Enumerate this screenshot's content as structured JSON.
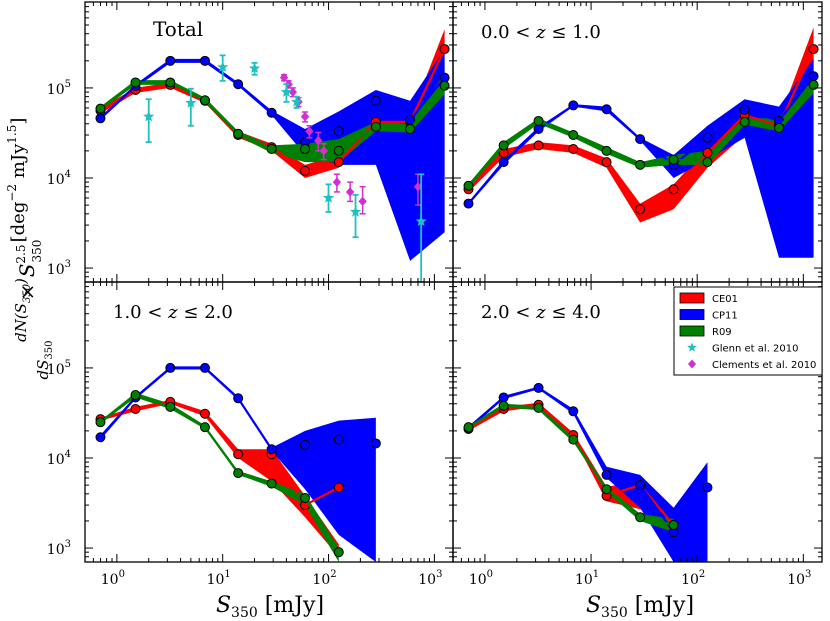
{
  "figure": {
    "ylabel": "dN(S350)/dS350 × S350^2.5 [deg^-2 mJy^1.5]",
    "ylabel_left": "dN(S",
    "ylabel_left_sub": "350",
    "ylabel_left_end": ")",
    "ylabel_den": "dS",
    "ylabel_den_sub": "350",
    "ylabel_times": "× S",
    "ylabel_sub": "350",
    "ylabel_sup": "2.5",
    "ylabel_unit": "[deg",
    "ylabel_unit_sup1": "−2",
    "ylabel_unit_mid": " mJy",
    "ylabel_unit_sup2": "1.5",
    "ylabel_unit_end": "]",
    "xlabel_main": "S",
    "xlabel_sub": "350",
    "xlabel_unit": " [mJy]",
    "xticks": [
      "10",
      "10",
      "10",
      "10"
    ],
    "xticks_exp": [
      "0",
      "1",
      "2",
      "3"
    ],
    "yticks": [
      "10",
      "10",
      "10"
    ],
    "yticks_exp": [
      "3",
      "4",
      "5"
    ]
  },
  "legend": {
    "entries": [
      {
        "name": "CE01",
        "color": "#ff0000",
        "kind": "band"
      },
      {
        "name": "CP11",
        "color": "#0000ff",
        "kind": "band"
      },
      {
        "name": "R09",
        "color": "#008000",
        "kind": "band"
      },
      {
        "name": "Glenn et al. 2010",
        "color": "#20c0c0",
        "kind": "star"
      },
      {
        "name": "Clements et al. 2010",
        "color": "#d030d0",
        "kind": "diamond"
      }
    ]
  },
  "chart_data": {
    "type": "line",
    "xscale": "log",
    "yscale": "log",
    "xlim": [
      0.5,
      1500
    ],
    "ylim": [
      700,
      900000
    ],
    "panels": [
      {
        "title": "Total",
        "series": [
          {
            "name": "CE01",
            "color": "#ff0000",
            "x": [
              0.7,
              1.5,
              3.2,
              6.8,
              14,
              29,
              60,
              125,
              280,
              590,
              1250
            ],
            "y": [
              56000,
              95000,
              108000,
              72000,
              30000,
              22000,
              12000,
              15000,
              42000,
              42000,
              270000
            ],
            "low": [
              52000,
              88000,
              100000,
              68000,
              28000,
              20000,
              10000,
              13000,
              38000,
              38000,
              230000
            ],
            "high": [
              60000,
              100000,
              115000,
              76000,
              33000,
              24000,
              14000,
              18000,
              46000,
              46000,
              450000
            ]
          },
          {
            "name": "CP11",
            "color": "#0000ff",
            "x": [
              0.7,
              1.5,
              3.2,
              6.8,
              14,
              29,
              60,
              125,
              280,
              590,
              1250
            ],
            "y": [
              46000,
              105000,
              200000,
              200000,
              110000,
              53000,
              25000,
              33000,
              72000,
              44000,
              130000
            ],
            "low": [
              44000,
              100000,
              190000,
              190000,
              105000,
              50000,
              18000,
              14000,
              14000,
              1200,
              2500
            ],
            "high": [
              48000,
              110000,
              210000,
              210000,
              115000,
              56000,
              35000,
              55000,
              95000,
              72000,
              270000
            ]
          },
          {
            "name": "R09",
            "color": "#008000",
            "x": [
              0.7,
              1.5,
              3.2,
              6.8,
              14,
              29,
              60,
              125,
              280,
              590,
              1250
            ],
            "y": [
              59000,
              115000,
              115000,
              73000,
              31000,
              21000,
              21000,
              20000,
              37000,
              35000,
              106000
            ],
            "low": [
              56000,
              108000,
              108000,
              68000,
              29000,
              19000,
              15000,
              15000,
              33000,
              32000,
              85000
            ],
            "high": [
              62000,
              122000,
              122000,
              78000,
              33000,
              23000,
              24000,
              27000,
              42000,
              40000,
              145000
            ]
          }
        ],
        "glenn": {
          "x": [
            2.0,
            5.0,
            10.0,
            20.0,
            40.0,
            50.0,
            100.0,
            180.0,
            750.0
          ],
          "y": [
            48000,
            68000,
            170000,
            165000,
            90000,
            70000,
            6000,
            4200,
            3300
          ],
          "err": [
            [
              25000,
              75000
            ],
            [
              38000,
              98000
            ],
            [
              120000,
              230000
            ],
            [
              140000,
              190000
            ],
            [
              70000,
              110000
            ],
            [
              60000,
              80000
            ],
            [
              4200,
              8500
            ],
            [
              2200,
              6500
            ],
            [
              700,
              11000
            ]
          ]
        },
        "clements": {
          "x": [
            38,
            42,
            46,
            52,
            60,
            66,
            80,
            90,
            120,
            160,
            210,
            700
          ],
          "y": [
            130000,
            110000,
            90000,
            70000,
            48000,
            33000,
            26000,
            20000,
            9000,
            7000,
            5500,
            8000
          ],
          "err": [
            [
              120000,
              140000
            ],
            [
              100000,
              120000
            ],
            [
              80000,
              100000
            ],
            [
              62000,
              78000
            ],
            [
              42000,
              54000
            ],
            [
              28000,
              38000
            ],
            [
              20000,
              32000
            ],
            [
              16000,
              24000
            ],
            [
              7000,
              11000
            ],
            [
              5500,
              9000
            ],
            [
              4000,
              8000
            ],
            [
              5000,
              11000
            ]
          ]
        }
      },
      {
        "title": "0.0 < z ≤ 1.0",
        "title_parts": [
          "0.0",
          " < ",
          "z",
          " ≤ ",
          "1.0"
        ],
        "series": [
          {
            "name": "CE01",
            "color": "#ff0000",
            "x": [
              0.7,
              1.5,
              3.2,
              6.8,
              14,
              29,
              60,
              125,
              280,
              590,
              1250
            ],
            "y": [
              7500,
              19000,
              23000,
              21000,
              15000,
              4500,
              7500,
              19000,
              50000,
              38000,
              270000
            ],
            "low": [
              7000,
              17000,
              21000,
              19000,
              13000,
              3200,
              4500,
              13000,
              30000,
              33000,
              160000
            ],
            "high": [
              8000,
              21000,
              25000,
              23000,
              16500,
              5200,
              8500,
              22000,
              55000,
              44000,
              470000
            ]
          },
          {
            "name": "CP11",
            "color": "#0000ff",
            "x": [
              0.7,
              1.5,
              3.2,
              6.8,
              14,
              29,
              60,
              125,
              280,
              590,
              1250
            ],
            "y": [
              5200,
              15000,
              35000,
              64000,
              58000,
              27000,
              14000,
              28000,
              57000,
              43000,
              135000
            ],
            "low": [
              5000,
              14000,
              33000,
              62000,
              55000,
              26000,
              10000,
              16000,
              28000,
              1300,
              1300
            ],
            "high": [
              5400,
              16000,
              37000,
              66000,
              62000,
              28000,
              18000,
              38000,
              75000,
              62000,
              210000
            ]
          },
          {
            "name": "R09",
            "color": "#008000",
            "x": [
              0.7,
              1.5,
              3.2,
              6.8,
              14,
              29,
              60,
              125,
              280,
              590,
              1250
            ],
            "y": [
              8200,
              23000,
              43000,
              30000,
              20000,
              14000,
              16000,
              15000,
              42000,
              36000,
              108000
            ],
            "low": [
              7800,
              21000,
              40000,
              28000,
              18500,
              13000,
              14000,
              14000,
              39000,
              33000,
              88000
            ],
            "high": [
              8600,
              25000,
              46000,
              32000,
              22000,
              15000,
              18000,
              20000,
              46000,
              46000,
              140000
            ]
          }
        ]
      },
      {
        "title": "1.0 < z ≤ 2.0",
        "title_parts": [
          "1.0",
          " < ",
          "z",
          " ≤ ",
          "2.0"
        ],
        "series": [
          {
            "name": "CE01",
            "color": "#ff0000",
            "x": [
              0.7,
              1.5,
              3.2,
              6.8,
              14,
              29,
              60,
              125
            ],
            "y": [
              27000,
              35000,
              42000,
              31000,
              11000,
              11000,
              3000,
              4700
            ],
            "low": [
              26000,
              33000,
              40000,
              29000,
              10000,
              5500,
              2200,
              800
            ],
            "high": [
              28000,
              37000,
              44000,
              33000,
              12500,
              12500,
              3800,
              1100
            ]
          },
          {
            "name": "CP11",
            "color": "#0000ff",
            "x": [
              0.7,
              1.5,
              3.2,
              6.8,
              14,
              29,
              60,
              125,
              280
            ],
            "y": [
              17000,
              47000,
              100000,
              100000,
              46000,
              12500,
              14000,
              16000,
              14500
            ],
            "low": [
              16000,
              45000,
              96000,
              96000,
              44000,
              12000,
              4500,
              1400,
              700
            ],
            "high": [
              18000,
              49000,
              104000,
              104000,
              48000,
              13000,
              20000,
              26000,
              28000
            ]
          },
          {
            "name": "R09",
            "color": "#008000",
            "x": [
              0.7,
              1.5,
              3.2,
              6.8,
              14,
              29,
              60,
              125
            ],
            "y": [
              25000,
              50000,
              37000,
              22000,
              6800,
              5200,
              3600,
              900
            ],
            "low": [
              24000,
              47000,
              35000,
              21000,
              6500,
              4800,
              3000,
              700
            ],
            "high": [
              26000,
              53000,
              40000,
              23000,
              7200,
              5500,
              4000,
              1000
            ]
          }
        ]
      },
      {
        "title": "2.0 < z ≤ 4.0",
        "title_parts": [
          "2.0",
          " < ",
          "z",
          " ≤ ",
          "4.0"
        ],
        "series": [
          {
            "name": "CE01",
            "color": "#ff0000",
            "x": [
              0.7,
              1.5,
              3.2,
              6.8,
              14,
              29,
              60
            ],
            "y": [
              21000,
              35000,
              39000,
              18000,
              3800,
              5000,
              1800
            ],
            "low": [
              20000,
              33000,
              37000,
              17000,
              3300,
              2700,
              1600
            ],
            "high": [
              22000,
              37000,
              41000,
              19000,
              4800,
              5500,
              2000
            ]
          },
          {
            "name": "CP11",
            "color": "#0000ff",
            "x": [
              0.7,
              1.5,
              3.2,
              6.8,
              14,
              29,
              60,
              125
            ],
            "y": [
              21500,
              47000,
              60000,
              33000,
              6500,
              5000,
              1500,
              4700
            ],
            "low": [
              20500,
              45000,
              58000,
              31000,
              6000,
              2800,
              700,
              700
            ],
            "high": [
              22500,
              49000,
              62000,
              35000,
              8000,
              6500,
              2800,
              9000
            ]
          },
          {
            "name": "R09",
            "color": "#008000",
            "x": [
              0.7,
              1.5,
              3.2,
              6.8,
              14,
              29,
              60
            ],
            "y": [
              22000,
              38000,
              36000,
              16000,
              4500,
              2200,
              1800
            ],
            "low": [
              21000,
              36000,
              34000,
              15000,
              4200,
              2000,
              1500
            ],
            "high": [
              23000,
              40000,
              38000,
              17000,
              4800,
              2400,
              2100
            ]
          }
        ]
      }
    ]
  }
}
